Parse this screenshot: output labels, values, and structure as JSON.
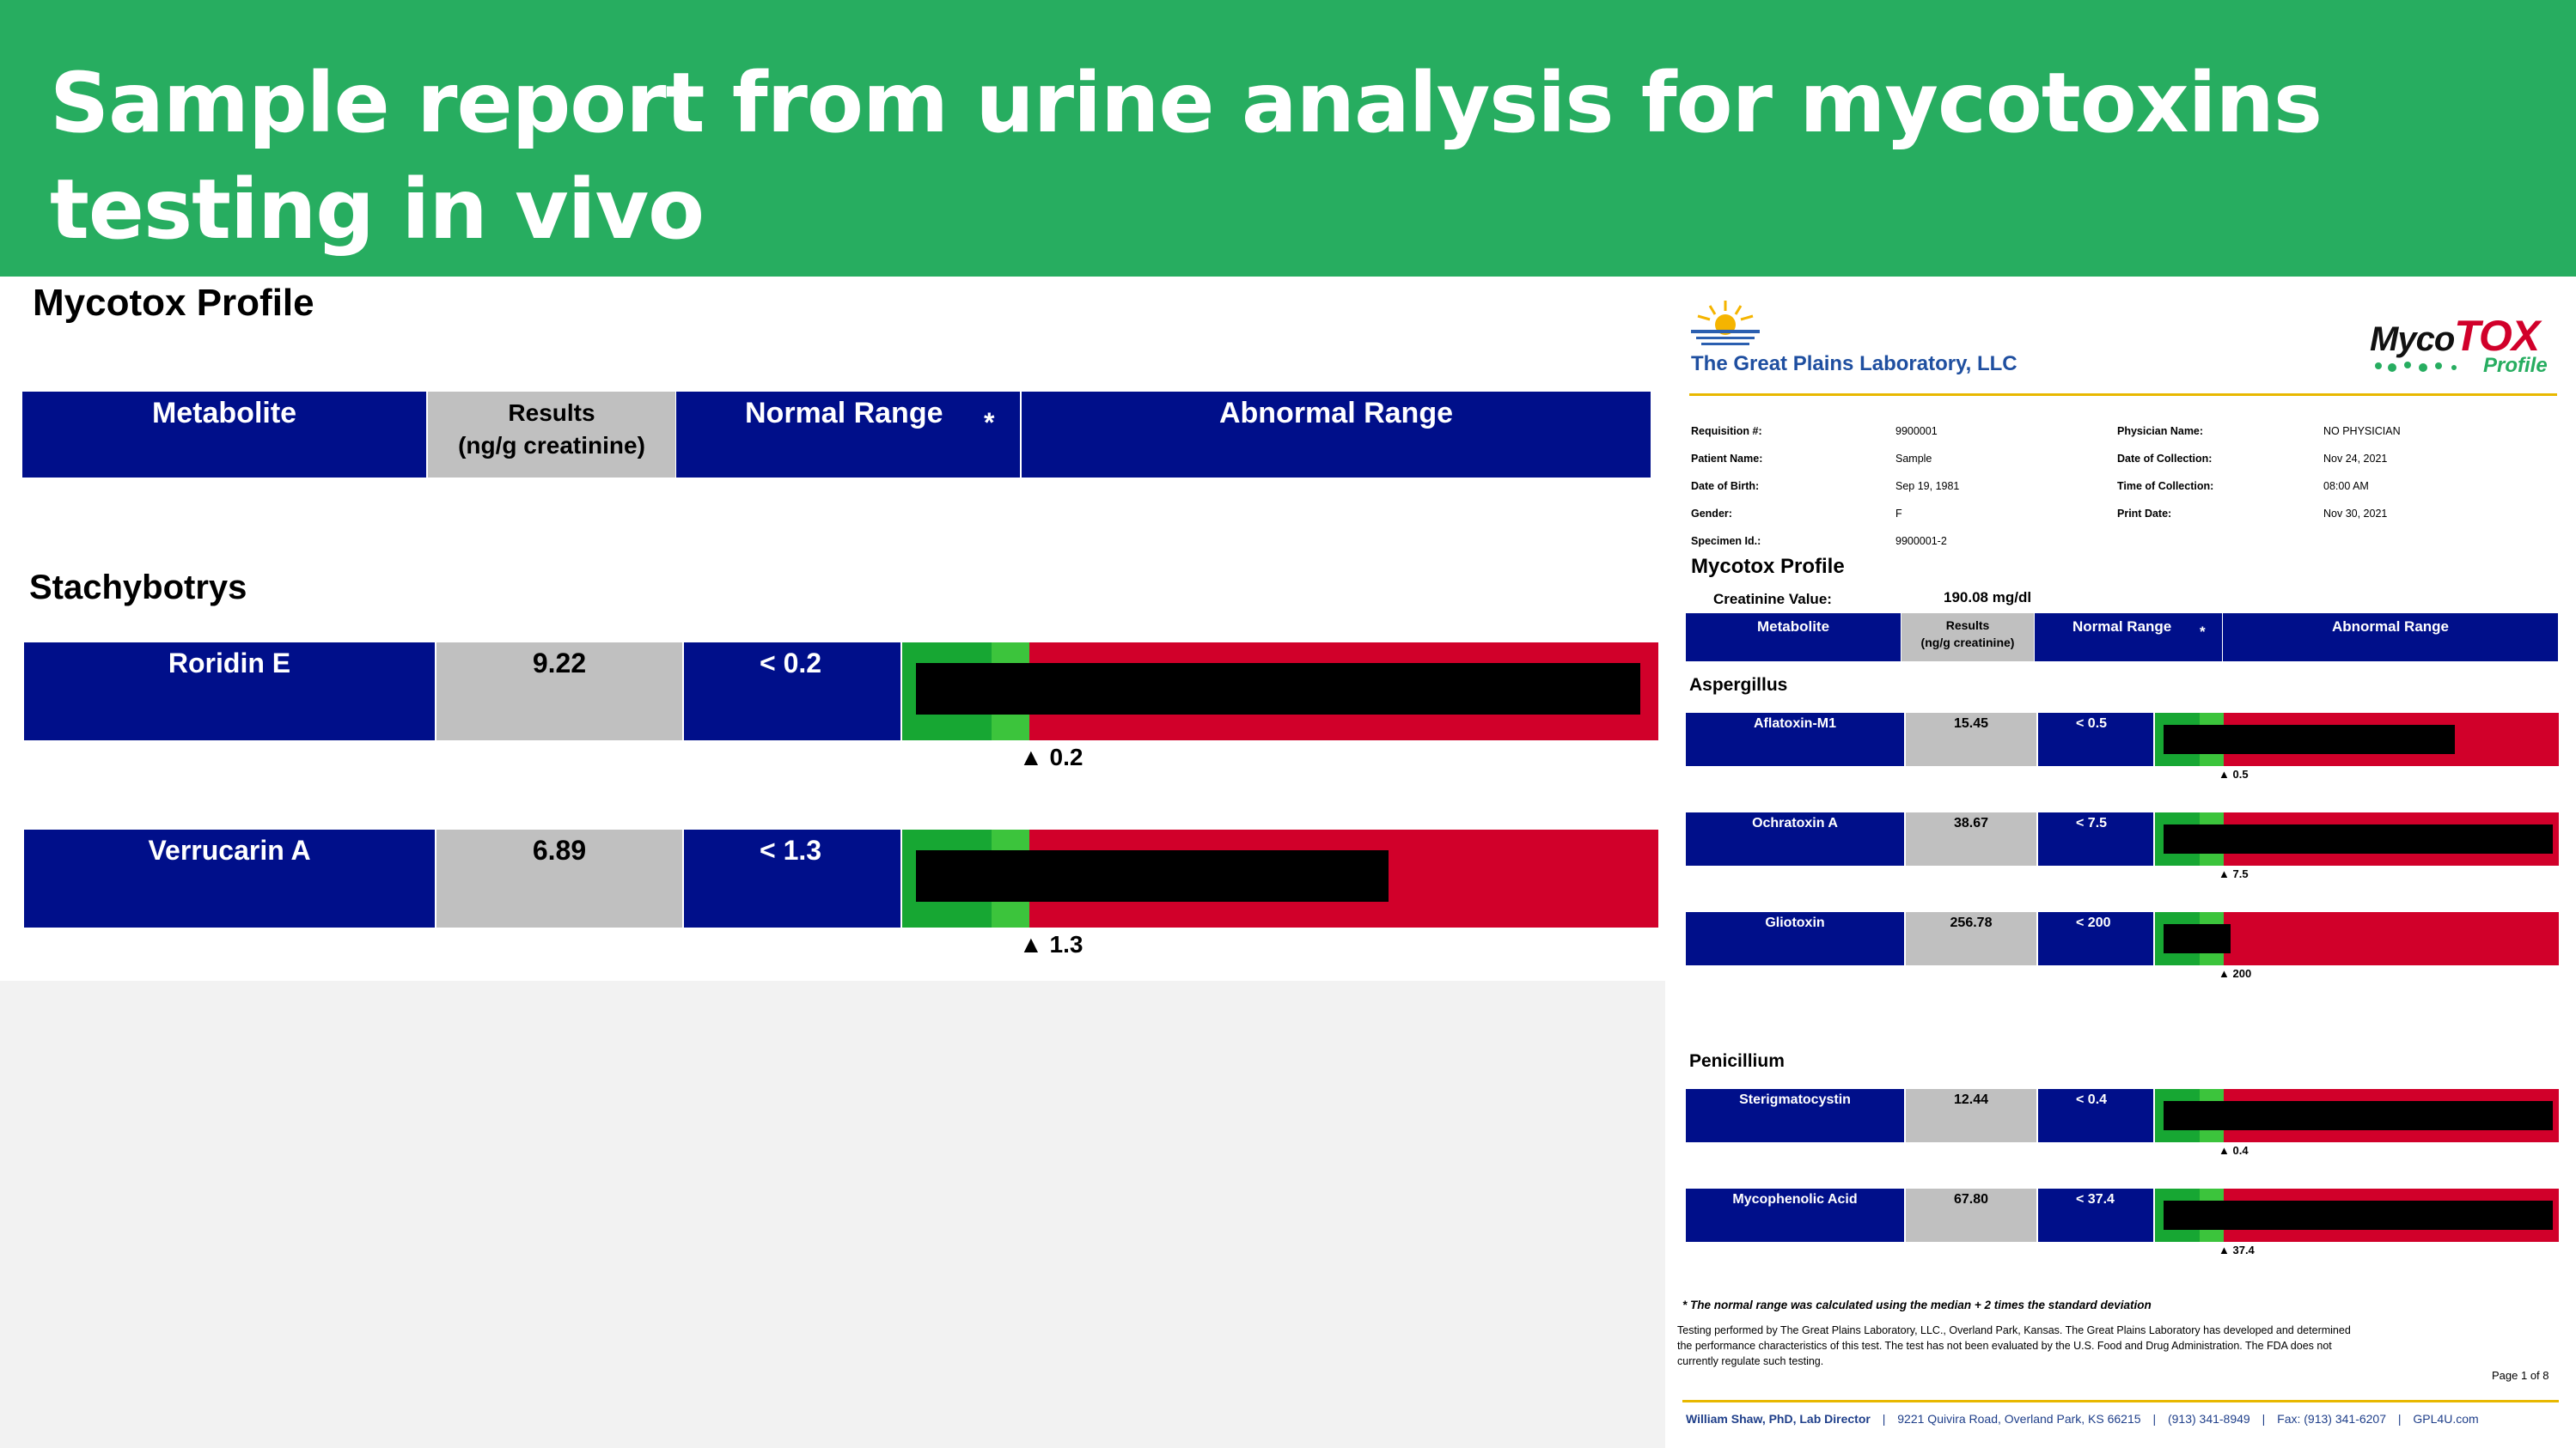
{
  "slide": {
    "title_line1": "Sample report from urine analysis for mycotoxins",
    "title_line2": "testing in vivo"
  },
  "colors": {
    "banner": "#27ad60",
    "header_navy": "#000f8a",
    "results_grey": "#c0c0c0",
    "normal_green": "#17a733",
    "abnormal_red": "#d1002a"
  },
  "zoom": {
    "profile_title": "Mycotox Profile",
    "headers": {
      "metabolite": "Metabolite",
      "results_line1": "Results",
      "results_line2": "(ng/g creatinine)",
      "normal": "Normal Range",
      "asterisk": "*",
      "abnormal": "Abnormal Range"
    },
    "section": "Stachybotrys",
    "rows": [
      {
        "name": "Roridin E",
        "result": "9.22",
        "range": "< 0.2",
        "marker": "▲ 0.2",
        "bar_fraction": 0.98
      },
      {
        "name": "Verrucarin A",
        "result": "6.89",
        "range": "< 1.3",
        "marker": "▲ 1.3",
        "bar_fraction": 0.64
      }
    ]
  },
  "report": {
    "lab_name": "The Great Plains Laboratory, LLC",
    "logo_myco": "Myco",
    "logo_tox": "TOX",
    "logo_profile": "Profile",
    "info": {
      "left": [
        {
          "label": "Requisition #:",
          "value": "9900001"
        },
        {
          "label": "Patient Name:",
          "value": "Sample"
        },
        {
          "label": "Date of Birth:",
          "value": "Sep 19, 1981"
        },
        {
          "label": "Gender:",
          "value": "F"
        },
        {
          "label": "Specimen Id.:",
          "value": "9900001-2"
        }
      ],
      "right": [
        {
          "label": "Physician Name:",
          "value": "NO PHYSICIAN"
        },
        {
          "label": "Date of Collection:",
          "value": "Nov 24, 2021"
        },
        {
          "label": "Time of Collection:",
          "value": "08:00 AM"
        },
        {
          "label": "Print Date:",
          "value": "Nov 30, 2021"
        }
      ]
    },
    "profile_title": "Mycotox Profile",
    "creatinine_label": "Creatinine Value:",
    "creatinine_value": "190.08 mg/dl",
    "headers": {
      "metabolite": "Metabolite",
      "results_line1": "Results",
      "results_line2": "(ng/g creatinine)",
      "normal": "Normal Range",
      "asterisk": "*",
      "abnormal": "Abnormal Range"
    },
    "sections": [
      {
        "name": "Aspergillus",
        "rows": [
          {
            "name": "Aflatoxin-M1",
            "result": "15.45",
            "range": "< 0.5",
            "marker": "▲ 0.5",
            "bar_fraction": 0.74
          },
          {
            "name": "Ochratoxin A",
            "result": "38.67",
            "range": "< 7.5",
            "marker": "▲ 7.5",
            "bar_fraction": 0.99
          },
          {
            "name": "Gliotoxin",
            "result": "256.78",
            "range": "< 200",
            "marker": "▲ 200",
            "bar_fraction": 0.17
          }
        ]
      },
      {
        "name": "Penicillium",
        "rows": [
          {
            "name": "Sterigmatocystin",
            "result": "12.44",
            "range": "< 0.4",
            "marker": "▲ 0.4",
            "bar_fraction": 0.99
          },
          {
            "name": "Mycophenolic Acid",
            "result": "67.80",
            "range": "< 37.4",
            "marker": "▲ 37.4",
            "bar_fraction": 0.99
          }
        ]
      }
    ],
    "footnote": "* The normal range was calculated using the median + 2 times the standard deviation",
    "disclaimer_line1": "Testing performed by The Great Plains Laboratory, LLC., Overland Park, Kansas. The Great Plains Laboratory has developed and determined",
    "disclaimer_line2": "the performance characteristics of this test. The test has not been evaluated by the U.S. Food and Drug Administration. The FDA does not",
    "disclaimer_line3": "currently regulate such testing.",
    "page": "Page 1 of 8",
    "footer": {
      "director": "William Shaw, PhD, Lab Director",
      "address": "9221 Quivira Road, Overland Park, KS 66215",
      "phone": "(913) 341-8949",
      "fax": "Fax: (913) 341-6207",
      "web": "GPL4U.com",
      "sep": "|"
    }
  }
}
